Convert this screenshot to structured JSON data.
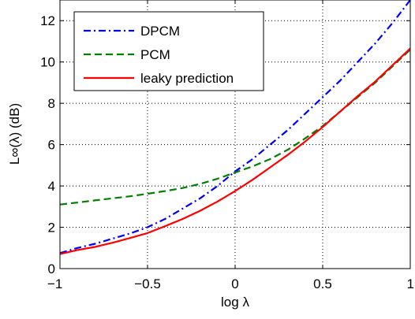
{
  "chart_data": {
    "type": "line",
    "xlabel": "log λ",
    "ylabel": "L∞(λ) (dB)",
    "xlim": [
      -1,
      1
    ],
    "ylim": [
      0,
      13
    ],
    "xticks": [
      -1,
      -0.5,
      0,
      0.5,
      1
    ],
    "xtick_labels": [
      "−1",
      "−0.5",
      "0",
      "0.5",
      "1"
    ],
    "yticks": [
      0,
      2,
      4,
      6,
      8,
      10,
      12
    ],
    "ytick_labels": [
      "0",
      "2",
      "4",
      "6",
      "8",
      "10",
      "12"
    ],
    "grid": true,
    "legend_position": "top-left",
    "series": [
      {
        "name": "DPCM",
        "color": "#0000ff",
        "style": "dash-dot",
        "x": [
          -1,
          -0.9,
          -0.8,
          -0.7,
          -0.6,
          -0.5,
          -0.4,
          -0.3,
          -0.2,
          -0.1,
          0,
          0.1,
          0.2,
          0.3,
          0.4,
          0.5,
          0.6,
          0.7,
          0.8,
          0.9,
          1.0
        ],
        "y": [
          0.75,
          1.0,
          1.2,
          1.45,
          1.7,
          2.0,
          2.4,
          2.9,
          3.4,
          4.0,
          4.7,
          5.3,
          6.0,
          6.7,
          7.5,
          8.3,
          9.1,
          10.0,
          10.9,
          11.9,
          13.0
        ]
      },
      {
        "name": "PCM",
        "color": "#007f00",
        "style": "dashed",
        "x": [
          -1,
          -0.9,
          -0.8,
          -0.7,
          -0.6,
          -0.5,
          -0.4,
          -0.3,
          -0.2,
          -0.1,
          0,
          0.1,
          0.2,
          0.3,
          0.4,
          0.5,
          0.6,
          0.7,
          0.8,
          0.9,
          1.0
        ],
        "y": [
          3.1,
          3.2,
          3.3,
          3.4,
          3.5,
          3.62,
          3.75,
          3.9,
          4.1,
          4.35,
          4.65,
          4.95,
          5.3,
          5.75,
          6.3,
          6.9,
          7.6,
          8.3,
          9.0,
          9.8,
          10.6
        ]
      },
      {
        "name": "leaky prediction",
        "color": "#ff0000",
        "style": "solid",
        "x": [
          -1,
          -0.9,
          -0.8,
          -0.7,
          -0.6,
          -0.5,
          -0.4,
          -0.3,
          -0.2,
          -0.1,
          0,
          0.1,
          0.2,
          0.3,
          0.4,
          0.5,
          0.6,
          0.7,
          0.8,
          0.9,
          1.0
        ],
        "y": [
          0.7,
          0.9,
          1.05,
          1.25,
          1.48,
          1.72,
          2.05,
          2.4,
          2.8,
          3.25,
          3.75,
          4.3,
          4.9,
          5.5,
          6.15,
          6.85,
          7.6,
          8.35,
          9.05,
          9.85,
          10.65
        ]
      }
    ]
  }
}
